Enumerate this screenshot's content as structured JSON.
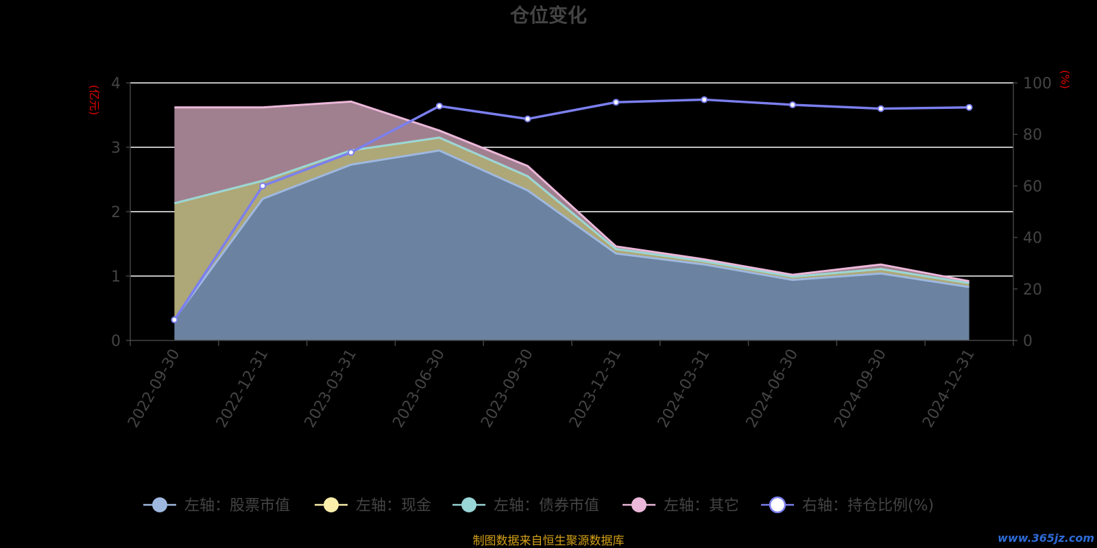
{
  "chart_data": {
    "type": "area",
    "title": "仓位变化",
    "left_axis_unit": "(亿元)",
    "right_axis_unit": "(%)",
    "categories": [
      "2022-09-30",
      "2022-12-31",
      "2023-03-31",
      "2023-06-30",
      "2023-09-30",
      "2023-12-31",
      "2024-03-31",
      "2024-06-30",
      "2024-09-30",
      "2024-12-31"
    ],
    "left_ylim": [
      0,
      4
    ],
    "left_yticks": [
      "0",
      "1",
      "2",
      "3",
      "4"
    ],
    "right_ylim": [
      0,
      100
    ],
    "right_yticks": [
      "0",
      "20",
      "40",
      "60",
      "80",
      "100"
    ],
    "grid": true,
    "legend_position": "bottom",
    "stacked": true,
    "series": [
      {
        "name": "左轴：股票市值",
        "axis": "left",
        "color": "#9eb8e0",
        "fill": "#6b83a0",
        "values": [
          0.33,
          2.2,
          2.73,
          2.95,
          2.33,
          1.35,
          1.18,
          0.94,
          1.04,
          0.83
        ]
      },
      {
        "name": "左轴：现金",
        "axis": "left",
        "color": "#fbeeaa",
        "fill": "#aea777",
        "values": [
          1.8,
          0.28,
          0.22,
          0.2,
          0.22,
          0.07,
          0.05,
          0.05,
          0.07,
          0.06
        ]
      },
      {
        "name": "左轴：债券市值",
        "axis": "left",
        "color": "#99d6d6",
        "fill": "#83a8a8",
        "values": [
          0,
          0,
          0,
          0,
          0,
          0,
          0,
          0,
          0,
          0
        ]
      },
      {
        "name": "左轴：其它",
        "axis": "left",
        "color": "#ecb8da",
        "fill": "#a0808f",
        "values": [
          1.49,
          1.14,
          0.76,
          0.11,
          0.16,
          0.04,
          0.03,
          0.03,
          0.07,
          0.03
        ]
      },
      {
        "name": "右轴：持仓比例(%)",
        "axis": "right",
        "type": "line",
        "color": "#7b7fef",
        "values": [
          8,
          60,
          73,
          91,
          86,
          92.5,
          93.5,
          91.5,
          90,
          90.5
        ]
      }
    ]
  },
  "footer": {
    "source": "制图数据来自恒生聚源数据库",
    "watermark": "www.365jz.com"
  }
}
